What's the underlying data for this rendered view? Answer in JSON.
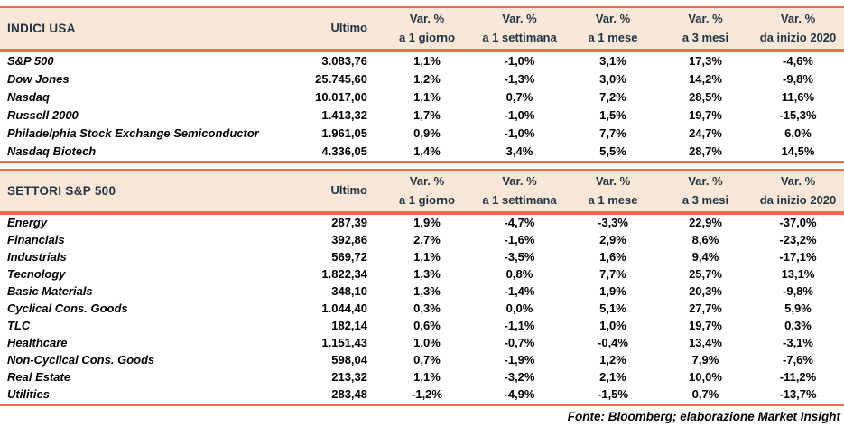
{
  "colors": {
    "accent": "#f2694e",
    "header_bg": "#fbe7d8",
    "header_text": "#1d3341",
    "body_text": "#000000"
  },
  "columns": {
    "ultimo": "Ultimo",
    "var_top": "Var. %",
    "var_sub": [
      "a 1 giorno",
      "a 1 settimana",
      "a 1 mese",
      "a 3 mesi",
      "da inizio 2020"
    ]
  },
  "tables": [
    {
      "title": "INDICI USA",
      "rows": [
        {
          "label": "S&P 500",
          "ultimo": "3.083,76",
          "values": [
            "1,1%",
            "-1,0%",
            "3,1%",
            "17,3%",
            "-4,6%"
          ]
        },
        {
          "label": "Dow Jones",
          "ultimo": "25.745,60",
          "values": [
            "1,2%",
            "-1,3%",
            "3,0%",
            "14,2%",
            "-9,8%"
          ]
        },
        {
          "label": "Nasdaq",
          "ultimo": "10.017,00",
          "values": [
            "1,1%",
            "0,7%",
            "7,2%",
            "28,5%",
            "11,6%"
          ]
        },
        {
          "label": "Russell 2000",
          "ultimo": "1.413,32",
          "values": [
            "1,7%",
            "-1,0%",
            "1,5%",
            "19,7%",
            "-15,3%"
          ]
        },
        {
          "label": "Philadelphia Stock Exchange Semiconductor",
          "ultimo": "1.961,05",
          "values": [
            "0,9%",
            "-1,0%",
            "7,7%",
            "24,7%",
            "6,0%"
          ]
        },
        {
          "label": "Nasdaq Biotech",
          "ultimo": "4.336,05",
          "values": [
            "1,4%",
            "3,4%",
            "5,5%",
            "28,7%",
            "14,5%"
          ]
        }
      ]
    },
    {
      "title": "SETTORI S&P 500",
      "rows": [
        {
          "label": "Energy",
          "ultimo": "287,39",
          "values": [
            "1,9%",
            "-4,7%",
            "-3,3%",
            "22,9%",
            "-37,0%"
          ]
        },
        {
          "label": "Financials",
          "ultimo": "392,86",
          "values": [
            "2,7%",
            "-1,6%",
            "2,9%",
            "8,6%",
            "-23,2%"
          ]
        },
        {
          "label": "Industrials",
          "ultimo": "569,72",
          "values": [
            "1,1%",
            "-3,5%",
            "1,6%",
            "9,4%",
            "-17,1%"
          ]
        },
        {
          "label": "Tecnology",
          "ultimo": "1.822,34",
          "values": [
            "1,3%",
            "0,8%",
            "7,7%",
            "25,7%",
            "13,1%"
          ]
        },
        {
          "label": "Basic Materials",
          "ultimo": "348,10",
          "values": [
            "1,3%",
            "-1,4%",
            "1,9%",
            "20,3%",
            "-9,8%"
          ]
        },
        {
          "label": "Cyclical Cons. Goods",
          "ultimo": "1.044,40",
          "values": [
            "0,3%",
            "0,0%",
            "5,1%",
            "27,7%",
            "5,9%"
          ]
        },
        {
          "label": "TLC",
          "ultimo": "182,14",
          "values": [
            "0,6%",
            "-1,1%",
            "1,0%",
            "19,7%",
            "0,3%"
          ]
        },
        {
          "label": "Healthcare",
          "ultimo": "1.151,43",
          "values": [
            "1,0%",
            "-0,7%",
            "-0,4%",
            "13,4%",
            "-3,1%"
          ]
        },
        {
          "label": "Non-Cyclical Cons. Goods",
          "ultimo": "598,04",
          "values": [
            "0,7%",
            "-1,9%",
            "1,2%",
            "7,9%",
            "-7,6%"
          ]
        },
        {
          "label": "Real Estate",
          "ultimo": "213,32",
          "values": [
            "1,1%",
            "-3,2%",
            "2,1%",
            "10,0%",
            "-11,2%"
          ]
        },
        {
          "label": "Utilities",
          "ultimo": "283,48",
          "values": [
            "-1,2%",
            "-4,9%",
            "-1,5%",
            "0,7%",
            "-13,7%"
          ]
        }
      ]
    }
  ],
  "footer": "Fonte: Bloomberg; elaborazione Market Insight"
}
